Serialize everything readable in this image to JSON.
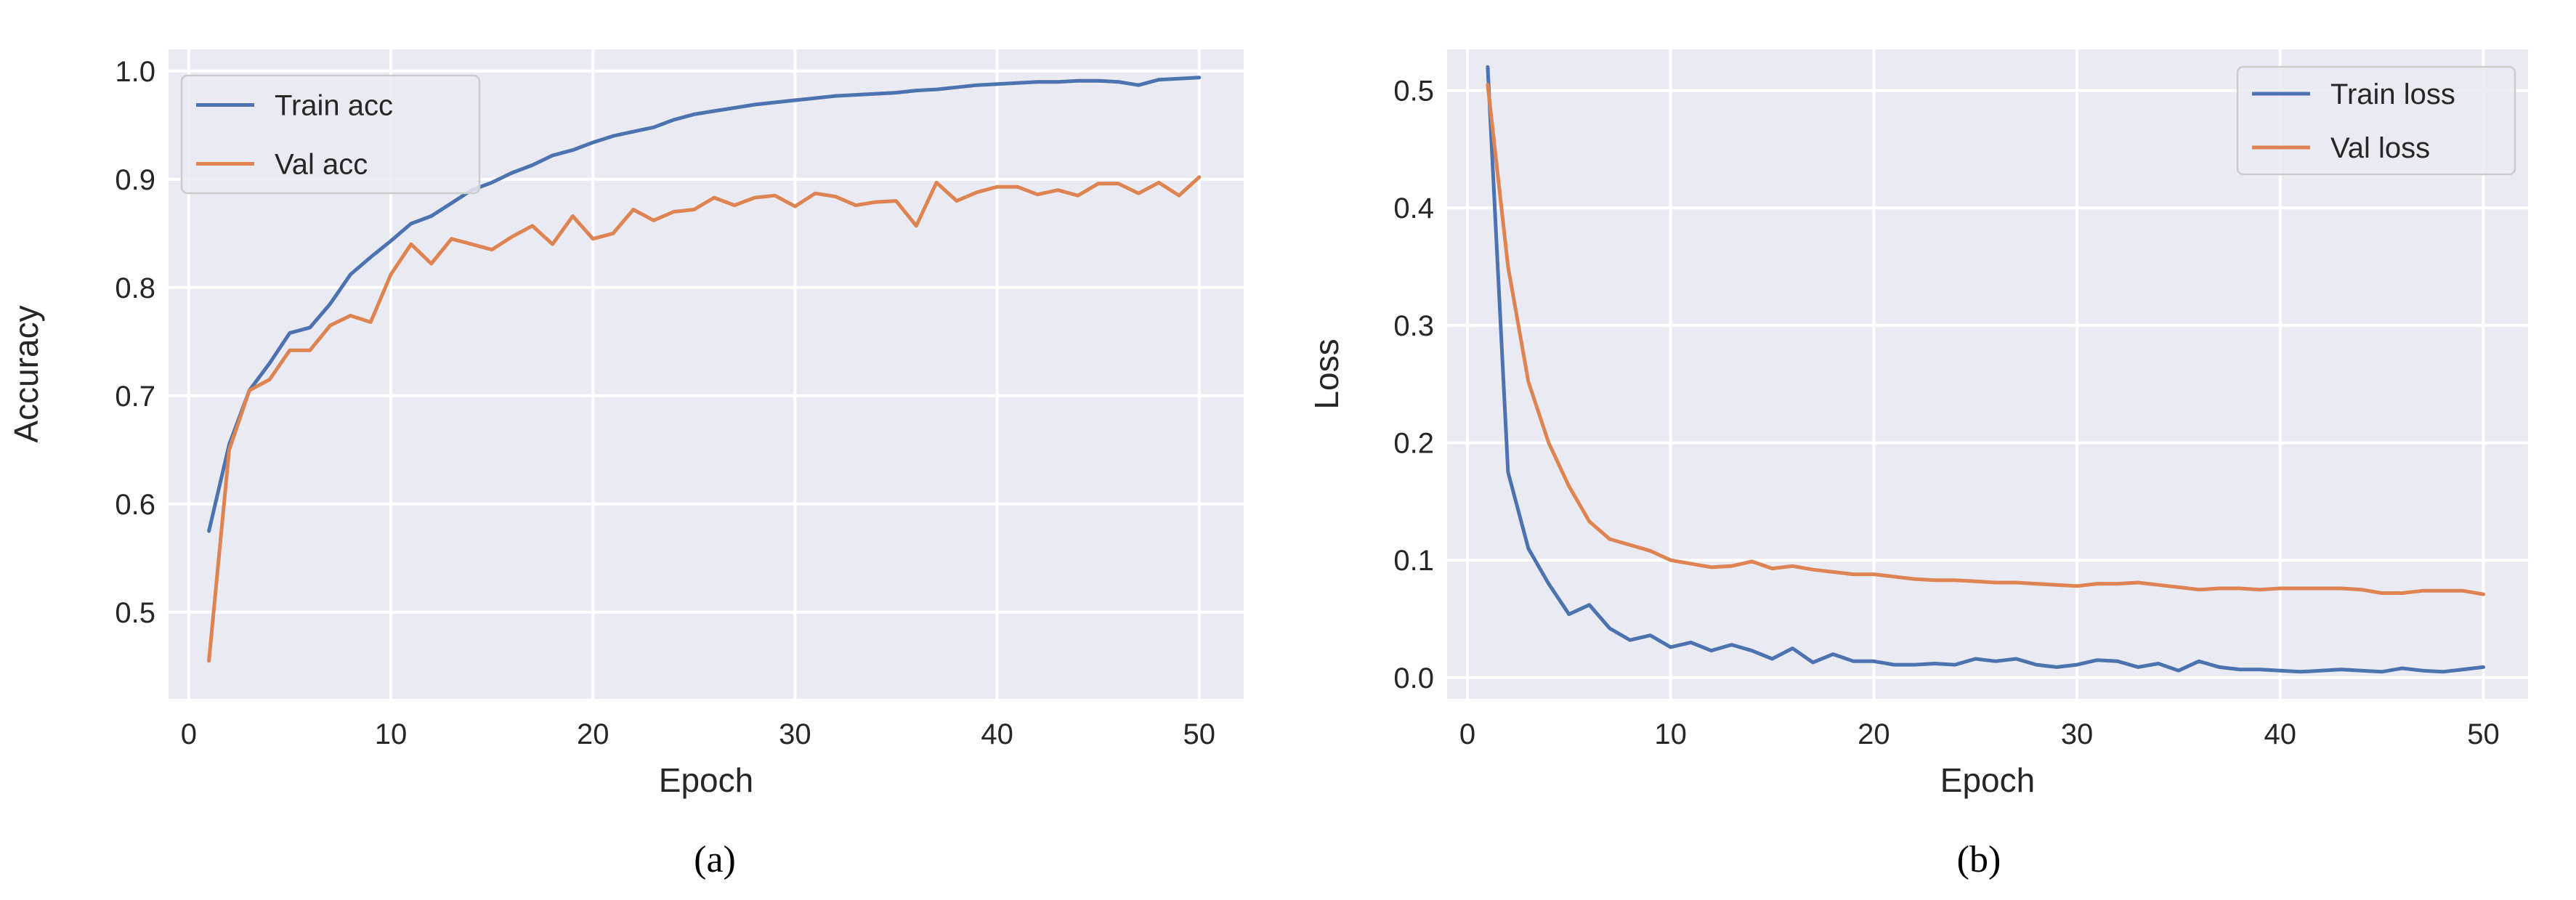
{
  "chart_data": [
    {
      "type": "line",
      "caption": "(a)",
      "xlabel": "Epoch",
      "ylabel": "Accuracy",
      "xlim": [
        -1,
        52.2
      ],
      "ylim": [
        0.42,
        1.02
      ],
      "xticks": [
        0,
        10,
        20,
        30,
        40,
        50
      ],
      "yticks": [
        0.5,
        0.6,
        0.7,
        0.8,
        0.9,
        1.0
      ],
      "ytick_labels": [
        "0.5",
        "0.6",
        "0.7",
        "0.8",
        "0.9",
        "1.0"
      ],
      "grid": true,
      "legend": "upper-left",
      "x": [
        1,
        2,
        3,
        4,
        5,
        6,
        7,
        8,
        9,
        10,
        11,
        12,
        13,
        14,
        15,
        16,
        17,
        18,
        19,
        20,
        21,
        22,
        23,
        24,
        25,
        26,
        27,
        28,
        29,
        30,
        31,
        32,
        33,
        34,
        35,
        36,
        37,
        38,
        39,
        40,
        41,
        42,
        43,
        44,
        45,
        46,
        47,
        48,
        49,
        50
      ],
      "series": [
        {
          "name": "Train acc",
          "color": "#4c72b0",
          "values": [
            0.575,
            0.655,
            0.705,
            0.73,
            0.758,
            0.763,
            0.785,
            0.812,
            0.828,
            0.843,
            0.859,
            0.866,
            0.878,
            0.89,
            0.897,
            0.906,
            0.913,
            0.922,
            0.927,
            0.934,
            0.94,
            0.944,
            0.948,
            0.955,
            0.96,
            0.963,
            0.966,
            0.969,
            0.971,
            0.973,
            0.975,
            0.977,
            0.978,
            0.979,
            0.98,
            0.982,
            0.983,
            0.985,
            0.987,
            0.988,
            0.989,
            0.99,
            0.99,
            0.991,
            0.991,
            0.99,
            0.987,
            0.992,
            0.993,
            0.994
          ]
        },
        {
          "name": "Val acc",
          "color": "#dd8452",
          "values": [
            0.455,
            0.65,
            0.705,
            0.715,
            0.742,
            0.742,
            0.765,
            0.774,
            0.768,
            0.812,
            0.84,
            0.822,
            0.845,
            0.84,
            0.835,
            0.847,
            0.857,
            0.84,
            0.866,
            0.845,
            0.85,
            0.872,
            0.862,
            0.87,
            0.872,
            0.883,
            0.876,
            0.883,
            0.885,
            0.875,
            0.887,
            0.884,
            0.876,
            0.879,
            0.88,
            0.857,
            0.897,
            0.88,
            0.888,
            0.893,
            0.893,
            0.886,
            0.89,
            0.885,
            0.896,
            0.896,
            0.887,
            0.897,
            0.885,
            0.902
          ]
        }
      ]
    },
    {
      "type": "line",
      "caption": "(b)",
      "xlabel": "Epoch",
      "ylabel": "Loss",
      "xlim": [
        -1,
        52.2
      ],
      "ylim": [
        -0.018,
        0.535
      ],
      "xticks": [
        0,
        10,
        20,
        30,
        40,
        50
      ],
      "yticks": [
        0.0,
        0.1,
        0.2,
        0.3,
        0.4,
        0.5
      ],
      "ytick_labels": [
        "0.0",
        "0.1",
        "0.2",
        "0.3",
        "0.4",
        "0.5"
      ],
      "grid": true,
      "legend": "upper-right",
      "x": [
        1,
        2,
        3,
        4,
        5,
        6,
        7,
        8,
        9,
        10,
        11,
        12,
        13,
        14,
        15,
        16,
        17,
        18,
        19,
        20,
        21,
        22,
        23,
        24,
        25,
        26,
        27,
        28,
        29,
        30,
        31,
        32,
        33,
        34,
        35,
        36,
        37,
        38,
        39,
        40,
        41,
        42,
        43,
        44,
        45,
        46,
        47,
        48,
        49,
        50
      ],
      "series": [
        {
          "name": "Train loss",
          "color": "#4c72b0",
          "values": [
            0.52,
            0.175,
            0.11,
            0.08,
            0.054,
            0.062,
            0.042,
            0.032,
            0.036,
            0.026,
            0.03,
            0.023,
            0.028,
            0.023,
            0.016,
            0.025,
            0.013,
            0.02,
            0.014,
            0.014,
            0.011,
            0.011,
            0.012,
            0.011,
            0.016,
            0.014,
            0.016,
            0.011,
            0.009,
            0.011,
            0.015,
            0.014,
            0.009,
            0.012,
            0.006,
            0.014,
            0.009,
            0.007,
            0.007,
            0.006,
            0.005,
            0.006,
            0.007,
            0.006,
            0.005,
            0.008,
            0.006,
            0.005,
            0.007,
            0.009
          ]
        },
        {
          "name": "Val loss",
          "color": "#dd8452",
          "values": [
            0.505,
            0.35,
            0.252,
            0.2,
            0.163,
            0.133,
            0.118,
            0.113,
            0.108,
            0.1,
            0.097,
            0.094,
            0.095,
            0.099,
            0.093,
            0.095,
            0.092,
            0.09,
            0.088,
            0.088,
            0.086,
            0.084,
            0.083,
            0.083,
            0.082,
            0.081,
            0.081,
            0.08,
            0.079,
            0.078,
            0.08,
            0.08,
            0.081,
            0.079,
            0.077,
            0.075,
            0.076,
            0.076,
            0.075,
            0.076,
            0.076,
            0.076,
            0.076,
            0.075,
            0.072,
            0.072,
            0.074,
            0.074,
            0.074,
            0.071
          ]
        }
      ]
    }
  ]
}
